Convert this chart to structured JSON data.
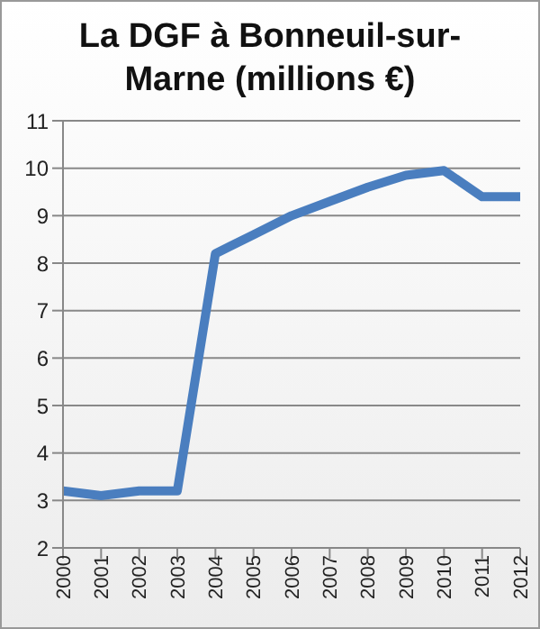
{
  "chart_data": {
    "type": "line",
    "title": "La DGF à Bonneuil-sur-Marne (millions €)",
    "categories": [
      "2000",
      "2001",
      "2002",
      "2003",
      "2004",
      "2005",
      "2006",
      "2007",
      "2008",
      "2009",
      "2010",
      "2011",
      "2012"
    ],
    "series": [
      {
        "color": "#4a7ebf",
        "values": [
          3.2,
          3.1,
          3.2,
          3.2,
          8.2,
          8.6,
          9.0,
          9.3,
          9.6,
          9.85,
          9.95,
          9.4,
          9.4
        ]
      }
    ],
    "ylim": [
      2,
      11
    ],
    "yticks": [
      2,
      3,
      4,
      5,
      6,
      7,
      8,
      9,
      10,
      11
    ],
    "grid": "y",
    "legend": false,
    "marker": "none",
    "line_style": "solid"
  }
}
